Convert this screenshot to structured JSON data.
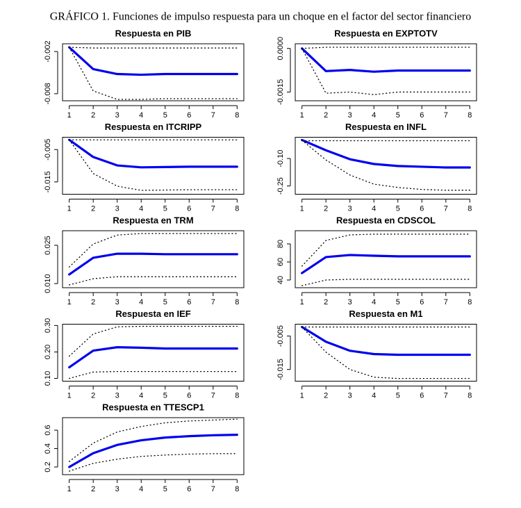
{
  "title": "GRÁFICO 1.  Funciones de impulso respuesta para un choque en el factor del sector financiero",
  "chart_data": [
    {
      "type": "line",
      "title": "Respuesta en PIB",
      "x": [
        1,
        2,
        3,
        4,
        5,
        6,
        7,
        8
      ],
      "xlim": [
        0.72,
        8.28
      ],
      "xticks": [
        1,
        2,
        3,
        4,
        5,
        6,
        7,
        8
      ],
      "ylim": [
        -0.009,
        -0.0009
      ],
      "yticks": [
        -0.002,
        -0.008
      ],
      "series": [
        {
          "color": "#0000ee",
          "style": "solid",
          "values": [
            -0.0014,
            -0.0045,
            -0.0052,
            -0.0053,
            -0.0052,
            -0.0052,
            -0.0052,
            -0.0052
          ]
        },
        {
          "color": "#000000",
          "style": "dotted",
          "values": [
            -0.0014,
            -0.0076,
            -0.0088,
            -0.0088,
            -0.0087,
            -0.0087,
            -0.0087,
            -0.0087
          ]
        },
        {
          "color": "#000000",
          "style": "dotted",
          "values": [
            -0.0014,
            -0.0015,
            -0.0015,
            -0.0015,
            -0.0015,
            -0.0015,
            -0.0015,
            -0.0015
          ]
        }
      ]
    },
    {
      "type": "line",
      "title": "Respuesta en EXPTOTV",
      "x": [
        1,
        2,
        3,
        4,
        5,
        6,
        7,
        8
      ],
      "xlim": [
        0.72,
        8.28
      ],
      "xticks": [
        1,
        2,
        3,
        4,
        5,
        6,
        7,
        8
      ],
      "ylim": [
        -0.0018,
        0.00016
      ],
      "yticks": [
        {
          "value": 0,
          "label": "0.0000"
        },
        -0.0015
      ],
      "series": [
        {
          "color": "#0000ee",
          "style": "solid",
          "values": [
            0,
            -0.00078,
            -0.00074,
            -0.0008,
            -0.00076,
            -0.00076,
            -0.00076,
            -0.00076
          ]
        },
        {
          "color": "#000000",
          "style": "dotted",
          "values": [
            0,
            -0.00154,
            -0.0015,
            -0.00159,
            -0.0015,
            -0.0015,
            -0.0015,
            -0.0015
          ]
        },
        {
          "color": "#000000",
          "style": "dotted",
          "values": [
            0,
            4e-05,
            4e-05,
            4e-05,
            4e-05,
            4e-05,
            4e-05,
            4e-05
          ]
        }
      ]
    },
    {
      "type": "line",
      "title": "Respuesta en ITCRIPP",
      "x": [
        1,
        2,
        3,
        4,
        5,
        6,
        7,
        8
      ],
      "xlim": [
        0.72,
        8.28
      ],
      "xticks": [
        1,
        2,
        3,
        4,
        5,
        6,
        7,
        8
      ],
      "ylim": [
        -0.0188,
        -0.0012
      ],
      "yticks": [
        -0.005,
        -0.015
      ],
      "series": [
        {
          "color": "#0000ee",
          "style": "solid",
          "values": [
            -0.002,
            -0.0073,
            -0.0099,
            -0.0105,
            -0.0104,
            -0.0103,
            -0.0103,
            -0.0103
          ]
        },
        {
          "color": "#000000",
          "style": "dotted",
          "values": [
            -0.002,
            -0.0124,
            -0.0163,
            -0.0176,
            -0.0175,
            -0.0174,
            -0.0174,
            -0.0174
          ]
        },
        {
          "color": "#000000",
          "style": "dotted",
          "values": [
            -0.002,
            -0.002,
            -0.002,
            -0.002,
            -0.002,
            -0.002,
            -0.002,
            -0.002
          ]
        }
      ]
    },
    {
      "type": "line",
      "title": "Respuesta en INFL",
      "x": [
        1,
        2,
        3,
        4,
        5,
        6,
        7,
        8
      ],
      "xlim": [
        0.72,
        8.28
      ],
      "xticks": [
        1,
        2,
        3,
        4,
        5,
        6,
        7,
        8
      ],
      "ylim": [
        -0.295,
        0.016
      ],
      "yticks": [
        {
          "value": -0.1,
          "label": "-0.10"
        },
        -0.25
      ],
      "series": [
        {
          "color": "#0000ee",
          "style": "solid",
          "values": [
            0.001,
            -0.055,
            -0.104,
            -0.13,
            -0.141,
            -0.145,
            -0.149,
            -0.149
          ]
        },
        {
          "color": "#000000",
          "style": "dotted",
          "values": [
            0,
            -0.108,
            -0.19,
            -0.24,
            -0.258,
            -0.269,
            -0.273,
            -0.273
          ]
        },
        {
          "color": "#000000",
          "style": "dotted",
          "values": [
            -0.003,
            -0.003,
            -0.003,
            -0.003,
            -0.003,
            -0.003,
            -0.003,
            -0.003
          ]
        }
      ]
    },
    {
      "type": "line",
      "title": "Respuesta en TRM",
      "x": [
        1,
        2,
        3,
        4,
        5,
        6,
        7,
        8
      ],
      "xlim": [
        0.72,
        8.28
      ],
      "xticks": [
        1,
        2,
        3,
        4,
        5,
        6,
        7,
        8
      ],
      "ylim": [
        0.0084,
        0.0307
      ],
      "yticks": [
        {
          "value": 0.01,
          "label": "0.010"
        },
        0.025
      ],
      "series": [
        {
          "color": "#0000ee",
          "style": "solid",
          "values": [
            0.0136,
            0.0201,
            0.0217,
            0.0217,
            0.0215,
            0.0215,
            0.0215,
            0.0215
          ]
        },
        {
          "color": "#000000",
          "style": "dotted",
          "values": [
            0.0095,
            0.0119,
            0.0127,
            0.0127,
            0.0127,
            0.0127,
            0.0127,
            0.0127
          ]
        },
        {
          "color": "#000000",
          "style": "dotted",
          "values": [
            0.0165,
            0.0255,
            0.029,
            0.0296,
            0.0296,
            0.0296,
            0.0296,
            0.0296
          ]
        }
      ]
    },
    {
      "type": "line",
      "title": "Respuesta en CDSCOL",
      "x": [
        1,
        2,
        3,
        4,
        5,
        6,
        7,
        8
      ],
      "xlim": [
        0.72,
        8.28
      ],
      "xticks": [
        1,
        2,
        3,
        4,
        5,
        6,
        7,
        8
      ],
      "ylim": [
        31.5,
        94.6
      ],
      "yticks": [
        40,
        60,
        80
      ],
      "series": [
        {
          "color": "#0000ee",
          "style": "solid",
          "values": [
            47.7,
            65.4,
            67.7,
            66.9,
            66.2,
            66.2,
            66.2,
            66.2
          ]
        },
        {
          "color": "#000000",
          "style": "dotted",
          "values": [
            33.8,
            40,
            40.8,
            40.8,
            40.8,
            40.8,
            40.8,
            40.8
          ]
        },
        {
          "color": "#000000",
          "style": "dotted",
          "values": [
            55.4,
            83.8,
            90,
            90.8,
            90.8,
            90.8,
            90.8,
            90.8
          ]
        }
      ]
    },
    {
      "type": "line",
      "title": "Respuesta en IEF",
      "x": [
        1,
        2,
        3,
        4,
        5,
        6,
        7,
        8
      ],
      "xlim": [
        0.72,
        8.28
      ],
      "xticks": [
        1,
        2,
        3,
        4,
        5,
        6,
        7,
        8
      ],
      "ylim": [
        0.0895,
        0.305
      ],
      "yticks": [
        {
          "value": 0.1,
          "label": "0.10"
        },
        {
          "value": 0.2,
          "label": "0.20"
        },
        {
          "value": 0.3,
          "label": "0.30"
        }
      ],
      "series": [
        {
          "color": "#0000ee",
          "style": "solid",
          "values": [
            0.142,
            0.205,
            0.218,
            0.216,
            0.213,
            0.213,
            0.213,
            0.213
          ]
        },
        {
          "color": "#000000",
          "style": "dotted",
          "values": [
            0.1,
            0.124,
            0.126,
            0.126,
            0.126,
            0.126,
            0.126,
            0.126
          ]
        },
        {
          "color": "#000000",
          "style": "dotted",
          "values": [
            0.184,
            0.268,
            0.295,
            0.297,
            0.297,
            0.297,
            0.297,
            0.297
          ]
        }
      ]
    },
    {
      "type": "line",
      "title": "Respuesta en M1",
      "x": [
        1,
        2,
        3,
        4,
        5,
        6,
        7,
        8
      ],
      "xlim": [
        0.72,
        8.28
      ],
      "xticks": [
        1,
        2,
        3,
        4,
        5,
        6,
        7,
        8
      ],
      "ylim": [
        -0.0185,
        -0.00146
      ],
      "yticks": [
        -0.005,
        -0.015
      ],
      "series": [
        {
          "color": "#0000ee",
          "style": "solid",
          "values": [
            -0.0023,
            -0.0067,
            -0.0094,
            -0.0104,
            -0.0106,
            -0.0106,
            -0.0106,
            -0.0106
          ]
        },
        {
          "color": "#000000",
          "style": "dotted",
          "values": [
            -0.0023,
            -0.0098,
            -0.015,
            -0.0173,
            -0.0177,
            -0.0177,
            -0.0177,
            -0.0177
          ]
        },
        {
          "color": "#000000",
          "style": "dotted",
          "values": [
            -0.0023,
            -0.0023,
            -0.0023,
            -0.0023,
            -0.0023,
            -0.0023,
            -0.0023,
            -0.0023
          ]
        }
      ]
    },
    {
      "type": "line",
      "title": "Respuesta en TTESCP1",
      "x": [
        1,
        2,
        3,
        4,
        5,
        6,
        7,
        8
      ],
      "xlim": [
        0.72,
        8.28
      ],
      "xticks": [
        1,
        2,
        3,
        4,
        5,
        6,
        7,
        8
      ],
      "ylim": [
        0.117,
        0.736
      ],
      "yticks": [
        0.2,
        0.4,
        0.6
      ],
      "series": [
        {
          "color": "#0000ee",
          "style": "solid",
          "values": [
            0.2,
            0.35,
            0.44,
            0.49,
            0.52,
            0.535,
            0.545,
            0.55
          ]
        },
        {
          "color": "#000000",
          "style": "dotted",
          "values": [
            0.155,
            0.24,
            0.285,
            0.315,
            0.33,
            0.34,
            0.345,
            0.345
          ]
        },
        {
          "color": "#000000",
          "style": "dotted",
          "values": [
            0.26,
            0.46,
            0.58,
            0.64,
            0.68,
            0.7,
            0.71,
            0.72
          ]
        }
      ]
    }
  ]
}
